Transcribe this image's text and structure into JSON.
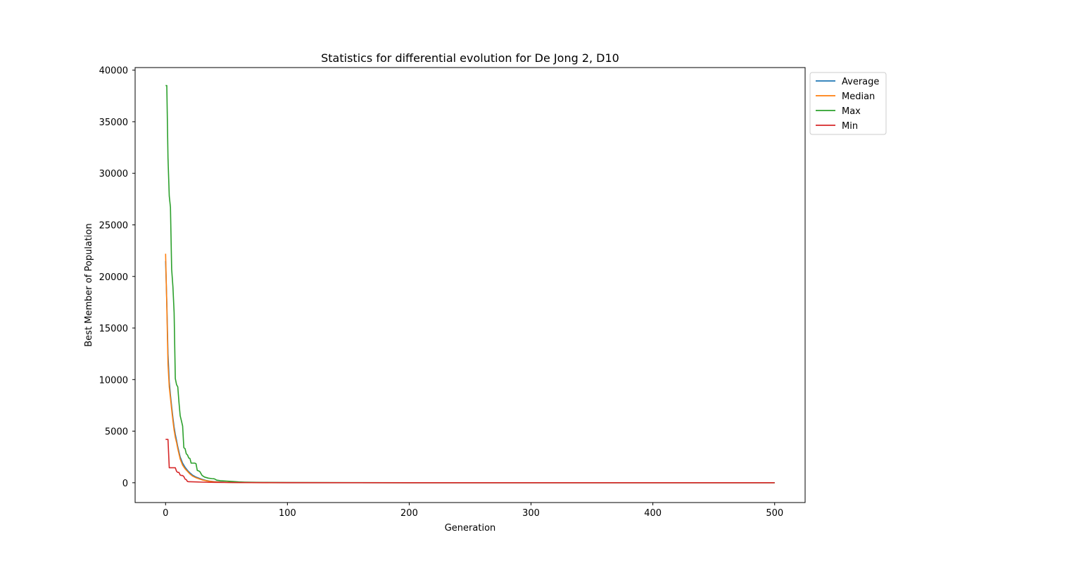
{
  "chart_data": {
    "type": "line",
    "title": "Statistics for differential evolution for De Jong 2, D10",
    "xlabel": "Generation",
    "ylabel": "Best Member of Population",
    "xlim": [
      -25,
      525
    ],
    "ylim": [
      -1920,
      40250
    ],
    "xticks": [
      0,
      100,
      200,
      300,
      400,
      500
    ],
    "yticks": [
      0,
      5000,
      10000,
      15000,
      20000,
      25000,
      30000,
      35000,
      40000
    ],
    "grid": false,
    "legend": "outside-top-right",
    "series": [
      {
        "name": "Average",
        "color": "#1f77b4",
        "x": [
          0,
          1,
          2,
          3,
          4,
          5,
          6,
          7,
          8,
          9,
          10,
          12,
          14,
          16,
          18,
          20,
          22,
          25,
          28,
          30,
          33,
          36,
          40,
          45,
          50,
          55,
          60,
          70,
          80,
          100,
          150,
          200,
          300,
          400,
          500
        ],
        "values": [
          21500,
          17500,
          12500,
          9800,
          8500,
          7400,
          6300,
          5400,
          4700,
          4100,
          3500,
          2500,
          1900,
          1500,
          1200,
          950,
          750,
          550,
          420,
          330,
          230,
          160,
          110,
          70,
          45,
          30,
          20,
          12,
          8,
          5,
          3,
          2,
          1,
          1,
          1
        ]
      },
      {
        "name": "Median",
        "color": "#ff7f0e",
        "x": [
          0,
          1,
          2,
          3,
          4,
          5,
          6,
          7,
          8,
          9,
          10,
          12,
          14,
          16,
          18,
          20,
          22,
          25,
          28,
          30,
          33,
          36,
          40,
          45,
          50,
          55,
          60,
          70,
          80,
          100,
          150,
          200,
          300,
          400,
          500
        ],
        "values": [
          22200,
          17200,
          11500,
          9300,
          8200,
          7100,
          6000,
          5100,
          4400,
          3900,
          3300,
          2300,
          1700,
          1350,
          1100,
          850,
          650,
          480,
          360,
          280,
          200,
          140,
          95,
          60,
          40,
          25,
          17,
          10,
          6,
          4,
          2,
          1,
          1,
          1,
          1
        ]
      },
      {
        "name": "Max",
        "color": "#2ca02c",
        "x": [
          0,
          1,
          2,
          3,
          4,
          5,
          6,
          7,
          8,
          9,
          10,
          11,
          12,
          13,
          14,
          15,
          16,
          17,
          18,
          19,
          20,
          21,
          22,
          24,
          25,
          26,
          28,
          29,
          30,
          32,
          35,
          38,
          40,
          42,
          45,
          50,
          55,
          60,
          65,
          70,
          80,
          100,
          150,
          200,
          300,
          400,
          500
        ],
        "values": [
          38500,
          38500,
          31500,
          27800,
          26700,
          20700,
          19000,
          16500,
          10100,
          9500,
          9300,
          7800,
          6500,
          6000,
          5500,
          3400,
          3300,
          2800,
          2700,
          2400,
          2350,
          1900,
          1900,
          1900,
          1850,
          1200,
          1100,
          900,
          700,
          550,
          450,
          400,
          380,
          250,
          200,
          160,
          120,
          80,
          60,
          45,
          30,
          15,
          8,
          5,
          3,
          2,
          2
        ]
      },
      {
        "name": "Min",
        "color": "#d62728",
        "x": [
          0,
          1,
          2,
          3,
          4,
          5,
          6,
          7,
          8,
          9,
          10,
          11,
          12,
          13,
          14,
          15,
          16,
          17,
          18,
          19,
          20,
          25,
          30,
          40,
          50,
          100,
          200,
          300,
          400,
          500
        ],
        "values": [
          4200,
          4200,
          4200,
          1450,
          1450,
          1450,
          1450,
          1450,
          1450,
          1100,
          1000,
          1000,
          750,
          700,
          700,
          600,
          350,
          300,
          120,
          100,
          100,
          80,
          60,
          40,
          25,
          10,
          5,
          2,
          1,
          1
        ]
      }
    ]
  }
}
